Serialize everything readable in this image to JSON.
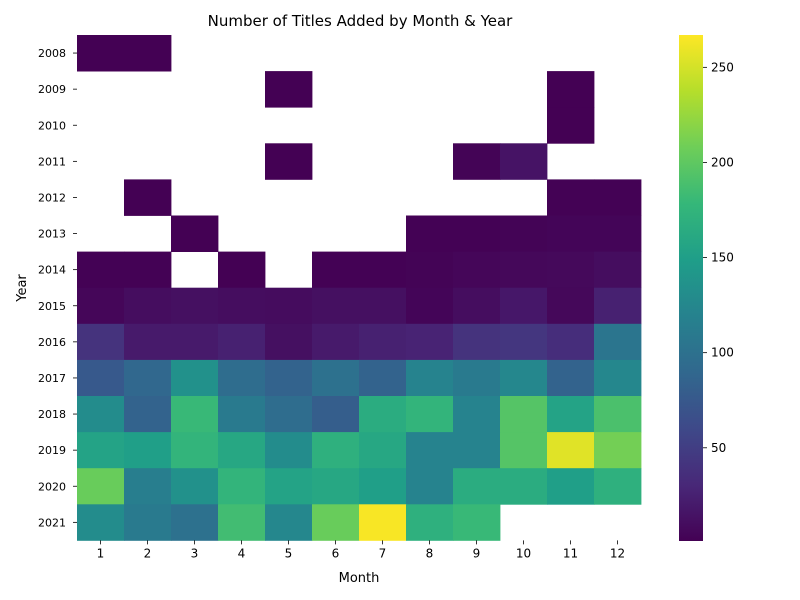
{
  "chart_data": {
    "type": "heatmap",
    "title": "Number of Titles Added by Month & Year",
    "xlabel": "Month",
    "ylabel": "Year",
    "x": [
      "1",
      "2",
      "3",
      "4",
      "5",
      "6",
      "7",
      "8",
      "9",
      "10",
      "11",
      "12"
    ],
    "y": [
      "2008",
      "2009",
      "2010",
      "2011",
      "2012",
      "2013",
      "2014",
      "2015",
      "2016",
      "2017",
      "2018",
      "2019",
      "2020",
      "2021"
    ],
    "values": [
      [
        1,
        1,
        null,
        null,
        null,
        null,
        null,
        null,
        null,
        null,
        null,
        null
      ],
      [
        null,
        null,
        null,
        null,
        1,
        null,
        null,
        null,
        null,
        null,
        1,
        null
      ],
      [
        null,
        null,
        null,
        null,
        null,
        null,
        null,
        null,
        null,
        null,
        1,
        null
      ],
      [
        null,
        null,
        null,
        null,
        1,
        null,
        null,
        null,
        3,
        15,
        null,
        null
      ],
      [
        null,
        1,
        null,
        null,
        null,
        null,
        null,
        null,
        null,
        null,
        2,
        2
      ],
      [
        null,
        null,
        1,
        null,
        null,
        null,
        null,
        2,
        2,
        3,
        4,
        4
      ],
      [
        2,
        2,
        null,
        1,
        null,
        2,
        2,
        3,
        5,
        6,
        7,
        10
      ],
      [
        5,
        10,
        12,
        10,
        9,
        12,
        12,
        4,
        10,
        18,
        6,
        25
      ],
      [
        40,
        20,
        20,
        25,
        12,
        20,
        25,
        27,
        40,
        43,
        35,
        105
      ],
      [
        75,
        90,
        135,
        95,
        85,
        100,
        85,
        120,
        110,
        125,
        85,
        125
      ],
      [
        130,
        85,
        180,
        110,
        95,
        80,
        165,
        175,
        120,
        195,
        155,
        190
      ],
      [
        155,
        150,
        175,
        160,
        130,
        170,
        160,
        120,
        120,
        195,
        255,
        210
      ],
      [
        205,
        115,
        135,
        175,
        155,
        160,
        150,
        120,
        165,
        165,
        150,
        170
      ],
      [
        130,
        110,
        100,
        185,
        125,
        205,
        265,
        170,
        180,
        null,
        null,
        null
      ]
    ],
    "colorbar": {
      "colormap": "viridis",
      "min": 1,
      "max": 267,
      "ticks": [
        50,
        100,
        150,
        200,
        250
      ]
    }
  }
}
